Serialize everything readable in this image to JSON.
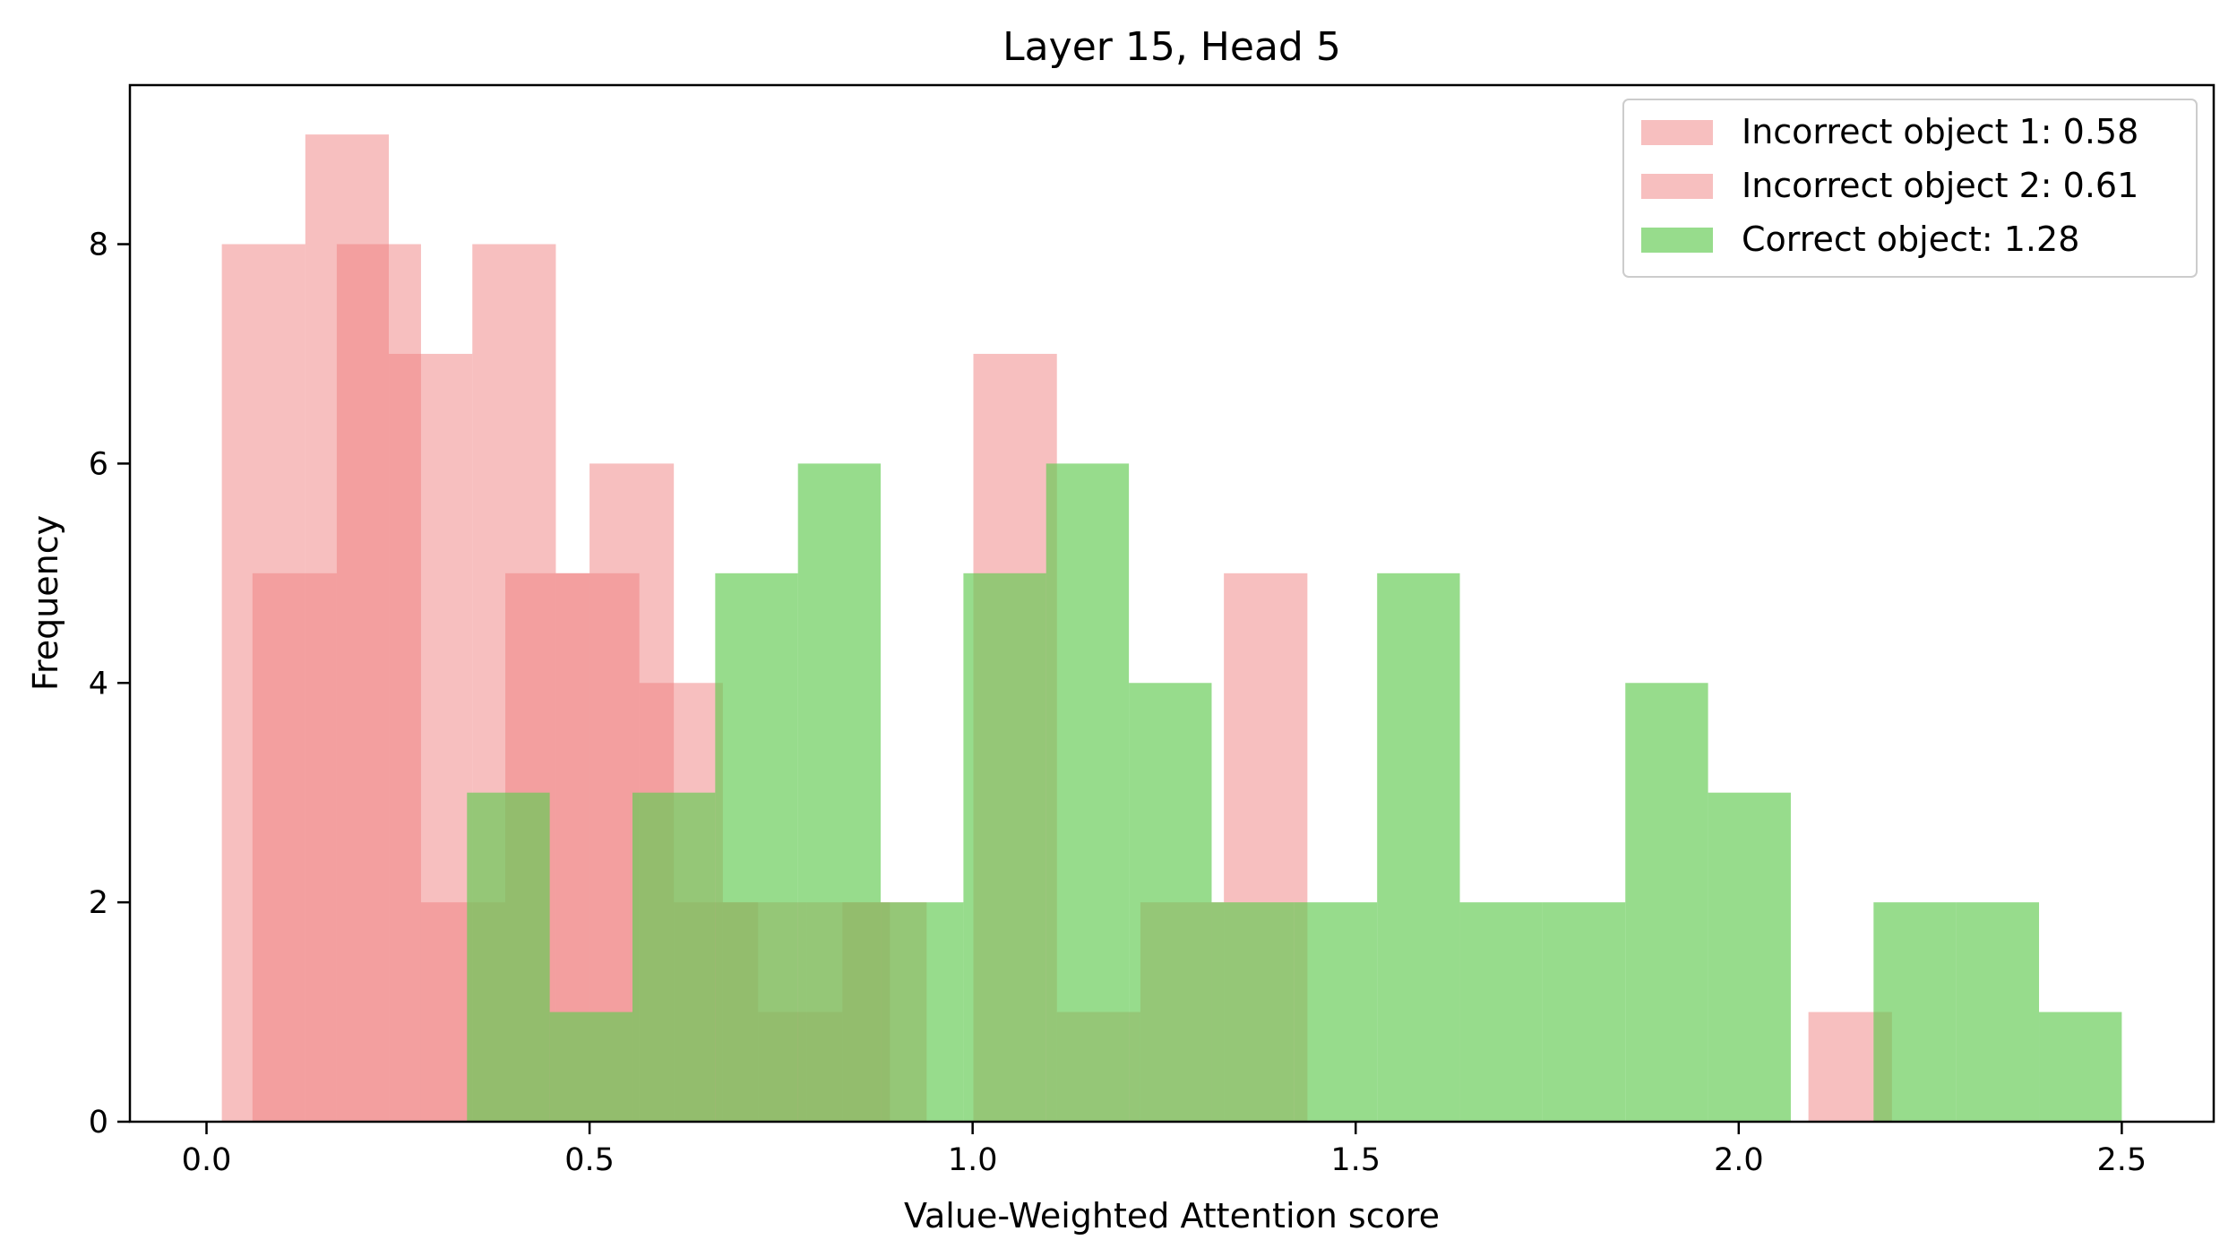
{
  "chart_data": {
    "type": "histogram",
    "title": "Layer 15, Head 5",
    "xlabel": "Value-Weighted Attention score",
    "ylabel": "Frequency",
    "xlim": [
      -0.1,
      2.62
    ],
    "ylim": [
      0,
      9.45
    ],
    "xticks": [
      "0.0",
      "0.5",
      "1.0",
      "1.5",
      "2.0",
      "2.5"
    ],
    "xtick_values": [
      0.0,
      0.5,
      1.0,
      1.5,
      2.0,
      2.5
    ],
    "yticks": [
      "0",
      "2",
      "4",
      "6",
      "8"
    ],
    "ytick_values": [
      0,
      2,
      4,
      6,
      8
    ],
    "grid": false,
    "legend_position": "top-right",
    "series": [
      {
        "name": "Incorrect object 1: 0.58",
        "color": "#f08080",
        "alpha": 0.5,
        "bin_edges": [
          0.02,
          0.129,
          0.238,
          0.347,
          0.456,
          0.565,
          0.674,
          0.783,
          0.892,
          1.001,
          1.11,
          1.219,
          1.328,
          1.437,
          1.546,
          1.655,
          1.764,
          1.873,
          1.982,
          2.091,
          2.2
        ],
        "counts": [
          8,
          9,
          7,
          8,
          5,
          4,
          2,
          2,
          0,
          7,
          1,
          2,
          5,
          0,
          0,
          0,
          0,
          0,
          0,
          1
        ]
      },
      {
        "name": "Incorrect object 2: 0.61",
        "color": "#f08080",
        "alpha": 0.5,
        "bin_edges": [
          0.06,
          0.17,
          0.28,
          0.39,
          0.5,
          0.61,
          0.72,
          0.83,
          0.94,
          1.05,
          1.16,
          1.27,
          1.38,
          1.49,
          1.6,
          1.71,
          1.82,
          1.93,
          2.04,
          2.15,
          2.26
        ],
        "counts": [
          5,
          8,
          2,
          5,
          6,
          2,
          1,
          2,
          0,
          0,
          0,
          0,
          0,
          0,
          0,
          0,
          0,
          0,
          0,
          0
        ]
      },
      {
        "name": "Correct object: 1.28",
        "color": "#66cc55",
        "alpha": 0.68,
        "bin_edges": [
          0.34,
          0.448,
          0.556,
          0.664,
          0.772,
          0.88,
          0.988,
          1.096,
          1.204,
          1.312,
          1.42,
          1.528,
          1.636,
          1.744,
          1.852,
          1.96,
          2.068,
          2.176,
          2.284,
          2.392,
          2.5
        ],
        "counts": [
          3,
          1,
          3,
          5,
          6,
          2,
          5,
          6,
          4,
          2,
          2,
          5,
          2,
          2,
          4,
          3,
          0,
          2,
          2,
          1
        ]
      }
    ]
  }
}
